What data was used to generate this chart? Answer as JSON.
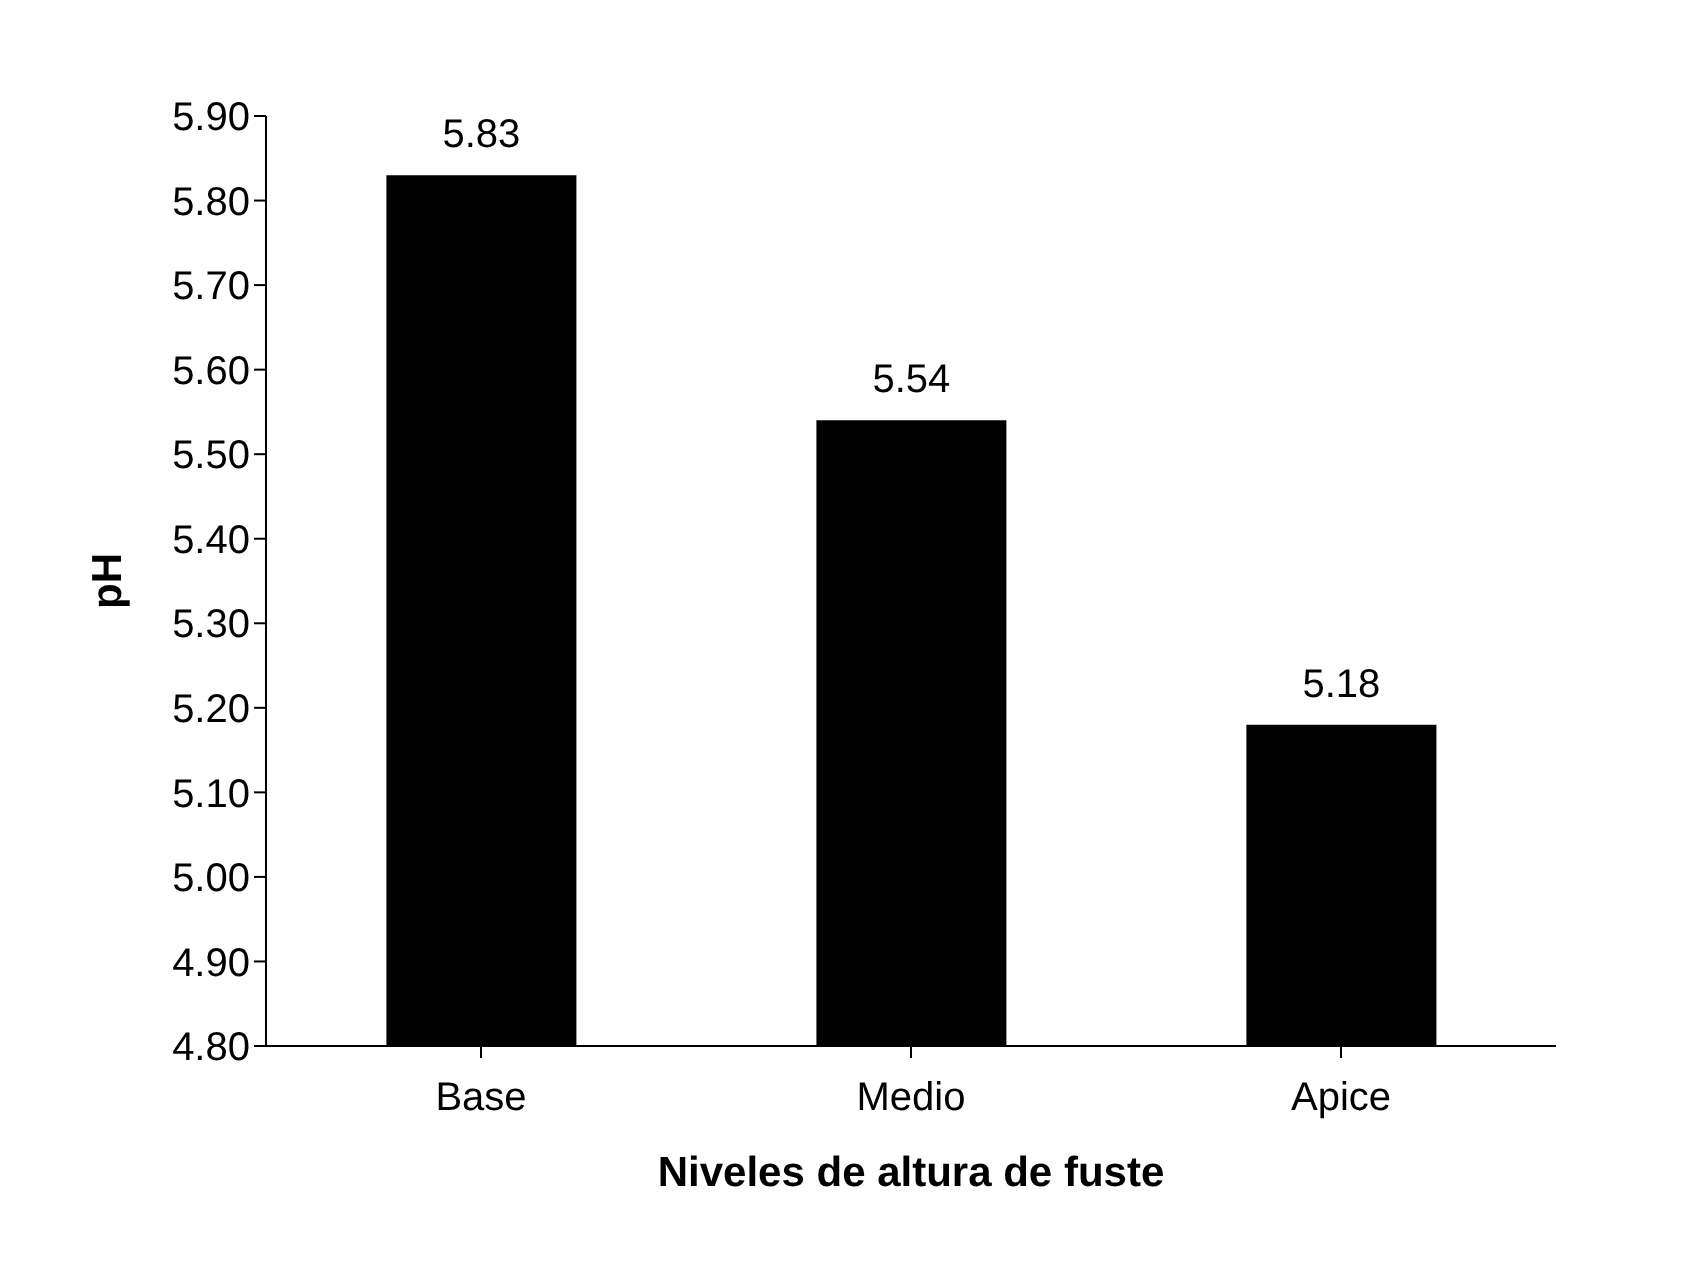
{
  "chart_data": {
    "type": "bar",
    "xlabel": "Niveles de altura de fuste",
    "ylabel": "pH",
    "categories": [
      "Base",
      "Medio",
      "Apice"
    ],
    "values": [
      5.83,
      5.54,
      5.18
    ],
    "color": "#000000",
    "ylim": [
      4.8,
      5.9
    ],
    "yticks": [
      {
        "value": 4.8,
        "label": "4.80"
      },
      {
        "value": 4.9,
        "label": "4.90"
      },
      {
        "value": 5.0,
        "label": "5.00"
      },
      {
        "value": 5.1,
        "label": "5.10"
      },
      {
        "value": 5.2,
        "label": "5.20"
      },
      {
        "value": 5.3,
        "label": "5.30"
      },
      {
        "value": 5.4,
        "label": "5.40"
      },
      {
        "value": 5.5,
        "label": "5.50"
      },
      {
        "value": 5.6,
        "label": "5.60"
      },
      {
        "value": 5.7,
        "label": "5.70"
      },
      {
        "value": 5.8,
        "label": "5.80"
      },
      {
        "value": 5.9,
        "label": "5.90"
      }
    ],
    "data_labels": true,
    "grid": false
  }
}
